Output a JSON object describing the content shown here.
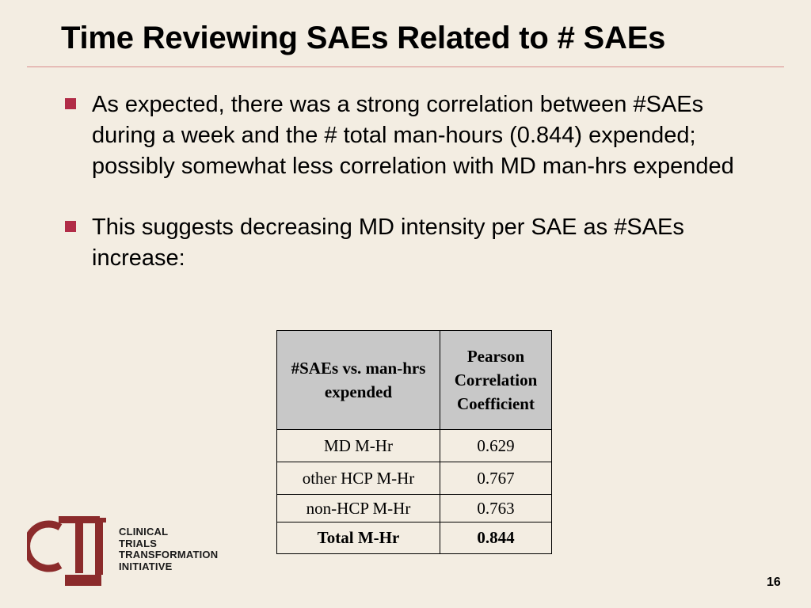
{
  "slide": {
    "title": "Time Reviewing SAEs Related to # SAEs",
    "bullets": [
      "As expected, there was a strong correlation between #SAEs during a week and the # total man-hours (0.844) expended; possibly somewhat less correlation with MD man-hrs expended",
      "This suggests decreasing MD intensity per SAE as #SAEs increase:"
    ],
    "page_number": "16"
  },
  "table": {
    "headers": [
      "#SAEs vs. man-hrs expended",
      "Pearson Correlation Coefficient"
    ],
    "rows": [
      [
        "MD M-Hr",
        "0.629"
      ],
      [
        "other HCP M-Hr",
        "0.767"
      ],
      [
        "non-HCP M-Hr",
        "0.763"
      ],
      [
        "Total M-Hr",
        "0.844"
      ]
    ]
  },
  "logo": {
    "mark": "CTI",
    "lines": [
      "CLINICAL",
      "TRIALS",
      "TRANSFORMATION",
      "INITIATIVE"
    ]
  },
  "colors": {
    "background": "#f3ede2",
    "bullet": "#b12c47",
    "logo": "#8b2b2b",
    "header_fill": "#c8c8c8"
  }
}
